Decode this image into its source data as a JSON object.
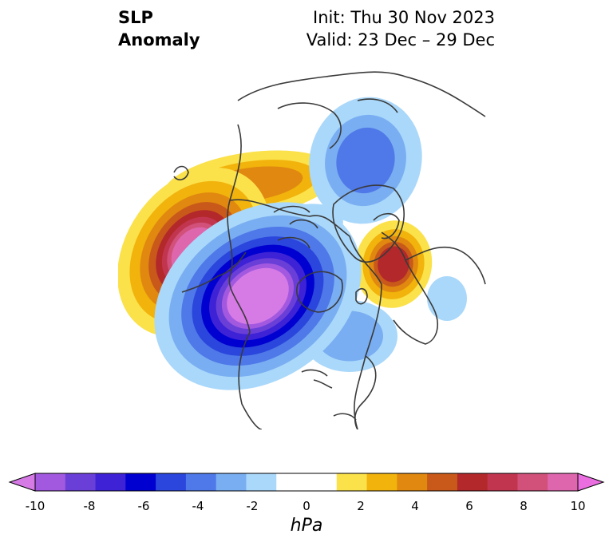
{
  "title": {
    "left_line1": "SLP",
    "left_line2": "Anomaly",
    "right_line1": "Init: Thu 30 Nov 2023",
    "right_line2": "Valid: 23 Dec – 29 Dec"
  },
  "colorbar": {
    "units": "hPa",
    "min": -10,
    "max": 10,
    "step": 1,
    "extend": "both",
    "tick_labels": [
      "-10",
      "-8",
      "-6",
      "-4",
      "-2",
      "0",
      "2",
      "4",
      "6",
      "8",
      "10"
    ],
    "colors": [
      "#d67ae6",
      "#a259e0",
      "#6a3fd8",
      "#3d22d6",
      "#0000d0",
      "#2a46dc",
      "#4f78e8",
      "#79aef2",
      "#aad8fa",
      "#ffffff",
      "#ffffff",
      "#fbe14a",
      "#f1b30c",
      "#e0880f",
      "#c8591a",
      "#b3282a",
      "#c2354f",
      "#d1517a",
      "#de66ad",
      "#ea6ee0"
    ]
  },
  "map": {
    "projection": "north-polar-stereographic",
    "field": "sea-level pressure anomaly",
    "anomaly_centers": [
      {
        "name": "north-pacific-high",
        "sign": "positive",
        "peak_hpa": 8,
        "region": "North Pacific / Gulf of Alaska"
      },
      {
        "name": "canada-low",
        "sign": "negative",
        "peak_hpa": -9,
        "region": "Western Canada / Hudson Bay"
      },
      {
        "name": "europe-high",
        "sign": "positive",
        "peak_hpa": 5,
        "region": "Scandinavia / Western Europe"
      },
      {
        "name": "siberia-high",
        "sign": "positive",
        "peak_hpa": 3,
        "region": "Northern Siberia"
      },
      {
        "name": "russia-low",
        "sign": "negative",
        "peak_hpa": -3,
        "region": "Western Russia"
      },
      {
        "name": "atlantic-low",
        "sign": "negative",
        "peak_hpa": -1,
        "region": "Central North Atlantic"
      }
    ]
  }
}
